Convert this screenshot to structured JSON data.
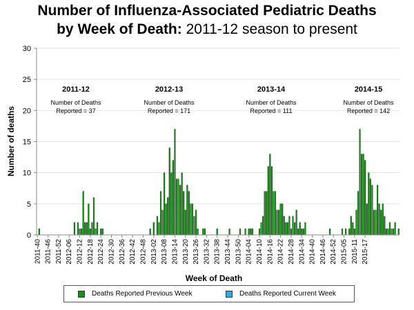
{
  "chart_data": {
    "type": "bar",
    "title_line1": "Number of Influenza-Associated Pediatric Deaths",
    "title_line2_bold": "by Week of Death:",
    "title_line2_rest": " 2011-12 season to present",
    "xlabel": "Week of Death",
    "ylabel": "Number of deaths",
    "ylim": [
      0,
      30
    ],
    "yticks": [
      0,
      5,
      10,
      15,
      20,
      25,
      30
    ],
    "x_tick_labels": [
      "2011-40",
      "2011-46",
      "2011-52",
      "2012-06",
      "2012-12",
      "2012-18",
      "2012-24",
      "2012-30",
      "2012-36",
      "2012-42",
      "2012-48",
      "2013-02",
      "2013-08",
      "2013-14",
      "2013-20",
      "2013-26",
      "2013-32",
      "2013-38",
      "2013-44",
      "2013-50",
      "2014-04",
      "2014-10",
      "2014-16",
      "2014-22",
      "2014-28",
      "2014-34",
      "2014-40",
      "2014-46",
      "2014-52",
      "2015-05",
      "2015-11",
      "2015-17"
    ],
    "annotations": [
      {
        "season": "2011-12",
        "line1": "Number of Deaths",
        "line2": "Reported = 37"
      },
      {
        "season": "2012-13",
        "line1": "Number of Deaths",
        "line2": "Reported = 171"
      },
      {
        "season": "2013-14",
        "line1": "Number of Deaths",
        "line2": "Reported = 111"
      },
      {
        "season": "2014-15",
        "line1": "Number of Deaths",
        "line2": "Reported = 142"
      }
    ],
    "series": [
      {
        "name": "Deaths Reported Previous Week",
        "color": "#1a8c1a",
        "values": [
          0,
          1,
          0,
          0,
          0,
          0,
          0,
          0,
          0,
          0,
          0,
          0,
          0,
          0,
          0,
          0,
          0,
          0,
          0,
          0,
          0,
          2,
          0,
          2,
          1,
          1,
          7,
          2,
          2,
          5,
          1,
          2,
          6,
          1,
          2,
          0,
          1,
          1,
          0,
          0,
          0,
          0,
          0,
          0,
          0,
          0,
          0,
          0,
          0,
          0,
          0,
          0,
          0,
          0,
          0,
          0,
          0,
          0,
          0,
          0,
          0,
          0,
          0,
          0,
          1,
          0,
          2,
          0,
          3,
          2,
          7,
          4,
          10,
          5,
          6,
          14,
          10,
          12,
          17,
          9,
          9,
          8,
          10,
          7,
          4,
          8,
          7,
          5,
          5,
          3,
          4,
          1,
          0,
          0,
          1,
          1,
          0,
          0,
          0,
          0,
          0,
          0,
          1,
          0,
          0,
          0,
          0,
          0,
          0,
          1,
          0,
          0,
          0,
          0,
          0,
          1,
          0,
          0,
          1,
          0,
          1,
          1,
          1,
          0,
          0,
          0,
          1,
          2,
          3,
          7,
          7,
          11,
          13,
          11,
          7,
          7,
          4,
          4,
          5,
          5,
          3,
          2,
          2,
          3,
          1,
          3,
          2,
          4,
          1,
          2,
          1,
          1,
          2,
          0,
          0,
          0,
          0,
          0,
          0,
          0,
          0,
          0,
          0,
          0,
          0,
          0,
          1,
          0,
          0,
          0,
          0,
          0,
          0,
          1,
          0,
          1,
          0,
          1,
          3,
          2,
          1,
          4,
          7,
          17,
          13,
          13,
          12,
          5,
          10,
          9,
          8,
          4,
          4,
          8,
          5,
          4,
          5,
          3,
          1,
          1,
          2,
          1,
          1,
          2,
          0,
          1
        ]
      },
      {
        "name": "Deaths Reported Current Week",
        "color": "#33aadd",
        "values": []
      }
    ]
  }
}
